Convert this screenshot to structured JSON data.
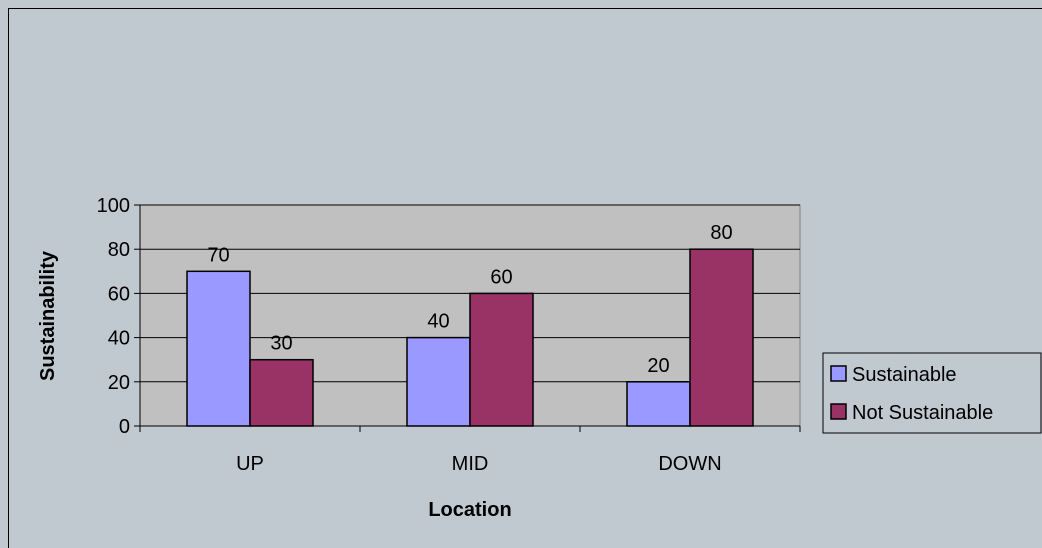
{
  "chart_data": {
    "type": "bar",
    "title": "",
    "xlabel": "Location",
    "ylabel": "Sustainability",
    "categories": [
      "UP",
      "MID",
      "DOWN"
    ],
    "series": [
      {
        "name": "Sustainable",
        "values": [
          70,
          40,
          20
        ],
        "color": "#9999ff"
      },
      {
        "name": "Not Sustainable",
        "values": [
          30,
          60,
          80
        ],
        "color": "#993366"
      }
    ],
    "ylim": [
      0,
      100
    ],
    "yticks": [
      0,
      20,
      40,
      60,
      80,
      100
    ],
    "grid": true,
    "plot_background": "#c0c0c0",
    "legend_position": "right",
    "data_labels": true
  }
}
